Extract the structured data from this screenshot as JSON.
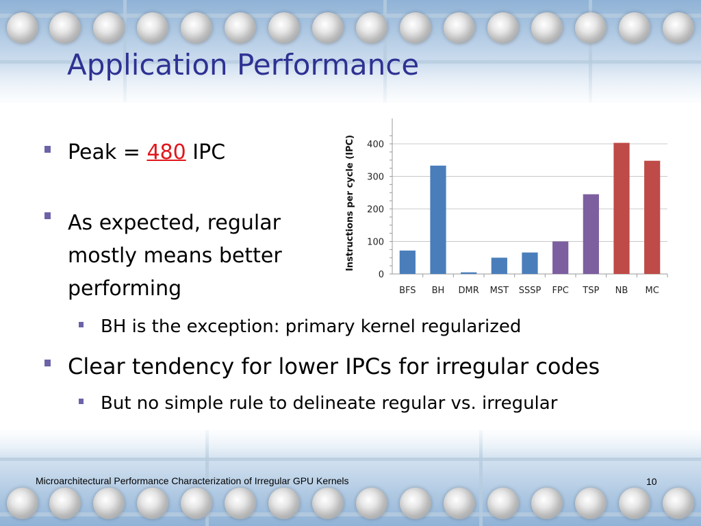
{
  "slide": {
    "title": "Application Performance",
    "bullets": {
      "peak_prefix": "Peak = ",
      "peak_value": "480",
      "peak_suffix": " IPC",
      "regular": "As expected, regular mostly means better performing",
      "bh_exception": "BH is the exception: primary kernel regularized",
      "tendency": "Clear tendency for lower IPCs for irregular codes",
      "no_rule": "But no simple rule to delineate regular vs. irregular"
    },
    "footer": "Microarchitectural Performance Characterization of Irregular GPU Kernels",
    "page_number": "10"
  },
  "chart_data": {
    "type": "bar",
    "categories": [
      "BFS",
      "BH",
      "DMR",
      "MST",
      "SSSP",
      "FPC",
      "TSP",
      "NB",
      "MC"
    ],
    "values": [
      72,
      333,
      5,
      50,
      66,
      100,
      245,
      403,
      348
    ],
    "colors": [
      "#4a7ebb",
      "#4a7ebb",
      "#4a7ebb",
      "#4a7ebb",
      "#4a7ebb",
      "#7d5fa0",
      "#7d5fa0",
      "#be4b48",
      "#be4b48"
    ],
    "ylabel": "Instructions per cycle (IPC)",
    "ylim": [
      0,
      400
    ],
    "yticks": [
      0,
      100,
      200,
      300,
      400
    ],
    "grid": true
  }
}
